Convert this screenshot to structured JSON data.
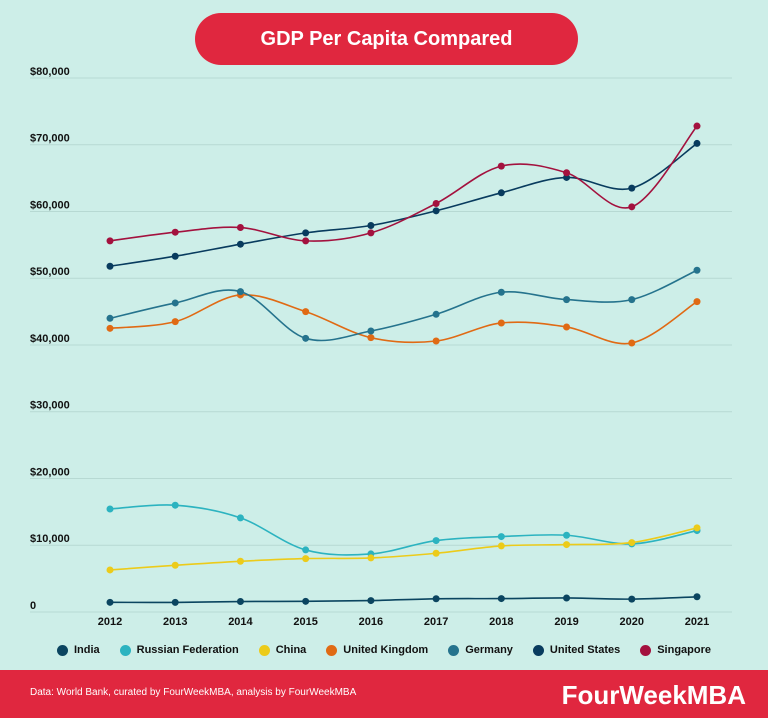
{
  "chart_data": {
    "type": "line",
    "title": "GDP Per Capita Compared",
    "categories": [
      "2012",
      "2013",
      "2014",
      "2015",
      "2016",
      "2017",
      "2018",
      "2019",
      "2020",
      "2021"
    ],
    "ylim": [
      0,
      80000
    ],
    "yticks": [
      0,
      {
        "value": 10000,
        "label": "$10,000"
      },
      {
        "value": 20000,
        "label": "$20,000"
      },
      {
        "value": 30000,
        "label": "$30,000"
      },
      {
        "value": 40000,
        "label": "$40,000"
      },
      {
        "value": 50000,
        "label": "$50,000"
      },
      {
        "value": 60000,
        "label": "$60,000"
      },
      {
        "value": 70000,
        "label": "$70,000"
      },
      {
        "value": 80000,
        "label": "$80,000"
      }
    ],
    "grid": true,
    "series": [
      {
        "name": "India",
        "color": "#0b4560",
        "values": [
          1450,
          1440,
          1570,
          1600,
          1710,
          1980,
          2010,
          2100,
          1930,
          2280
        ]
      },
      {
        "name": "Russian Federation",
        "color": "#2cb3c0",
        "values": [
          15430,
          16000,
          14100,
          9300,
          8700,
          10700,
          11300,
          11500,
          10200,
          12200
        ]
      },
      {
        "name": "China",
        "color": "#eccb1a",
        "values": [
          6300,
          7000,
          7600,
          8000,
          8100,
          8800,
          9900,
          10100,
          10400,
          12600
        ]
      },
      {
        "name": "United Kingdom",
        "color": "#e06a14",
        "values": [
          42500,
          43500,
          47500,
          45000,
          41100,
          40600,
          43300,
          42700,
          40300,
          46500
        ]
      },
      {
        "name": "Germany",
        "color": "#25738d",
        "values": [
          44000,
          46300,
          48000,
          41000,
          42100,
          44600,
          47900,
          46800,
          46800,
          51200
        ]
      },
      {
        "name": "United States",
        "color": "#083b5e",
        "values": [
          51800,
          53300,
          55100,
          56800,
          57900,
          60100,
          62800,
          65100,
          63500,
          70200
        ]
      },
      {
        "name": "Singapore",
        "color": "#a3113e",
        "values": [
          55600,
          56900,
          57600,
          55600,
          56800,
          61200,
          66800,
          65800,
          60700,
          72800
        ]
      }
    ]
  },
  "footer": {
    "source": "Data: World Bank, curated by FourWeekMBA, analysis by FourWeekMBA",
    "brand": "FourWeekMBA"
  }
}
